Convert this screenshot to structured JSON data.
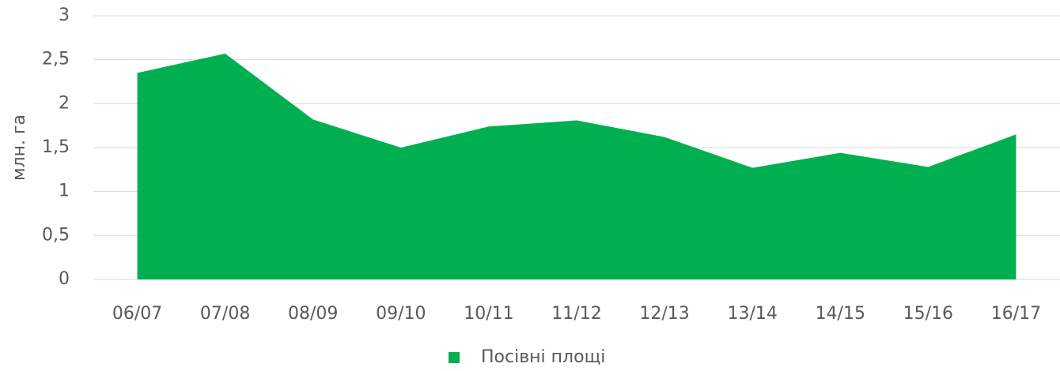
{
  "chart_data": {
    "type": "area",
    "y_label": "млн. га",
    "categories": [
      "06/07",
      "07/08",
      "08/09",
      "09/10",
      "10/11",
      "11/12",
      "12/13",
      "13/14",
      "14/15",
      "15/16",
      "16/17"
    ],
    "series": [
      {
        "name": "Посівні площі",
        "color": "#00b050",
        "values": [
          2.35,
          2.57,
          1.82,
          1.5,
          1.74,
          1.81,
          1.62,
          1.27,
          1.44,
          1.28,
          1.65
        ]
      }
    ],
    "ylim": [
      0,
      3
    ],
    "yticks": [
      0,
      {
        "value": 0.5,
        "label": "0,5"
      },
      1,
      {
        "value": 1.5,
        "label": "1,5"
      },
      2,
      {
        "value": 2.5,
        "label": "2,5"
      },
      3
    ],
    "grid": true,
    "legend": "bottom"
  }
}
